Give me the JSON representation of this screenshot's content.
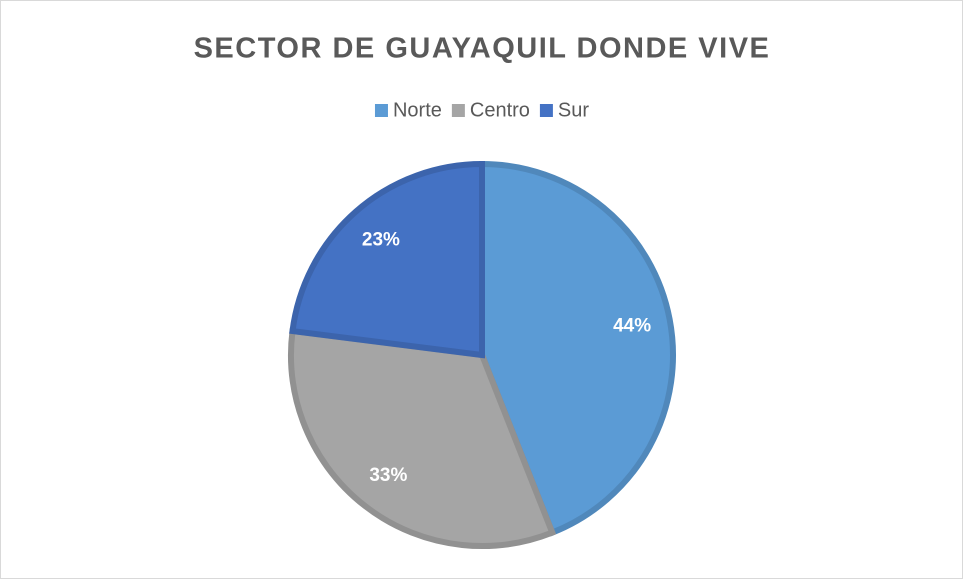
{
  "chart_data": {
    "type": "pie",
    "title": "SECTOR DE GUAYAQUIL DONDE VIVE",
    "categories": [
      "Norte",
      "Centro",
      "Sur"
    ],
    "values": [
      44,
      33,
      23
    ],
    "value_labels": [
      "44%",
      "33%",
      "23%"
    ],
    "colors": [
      "#5b9bd5",
      "#a5a5a5",
      "#4472c4"
    ],
    "legend": "top"
  }
}
